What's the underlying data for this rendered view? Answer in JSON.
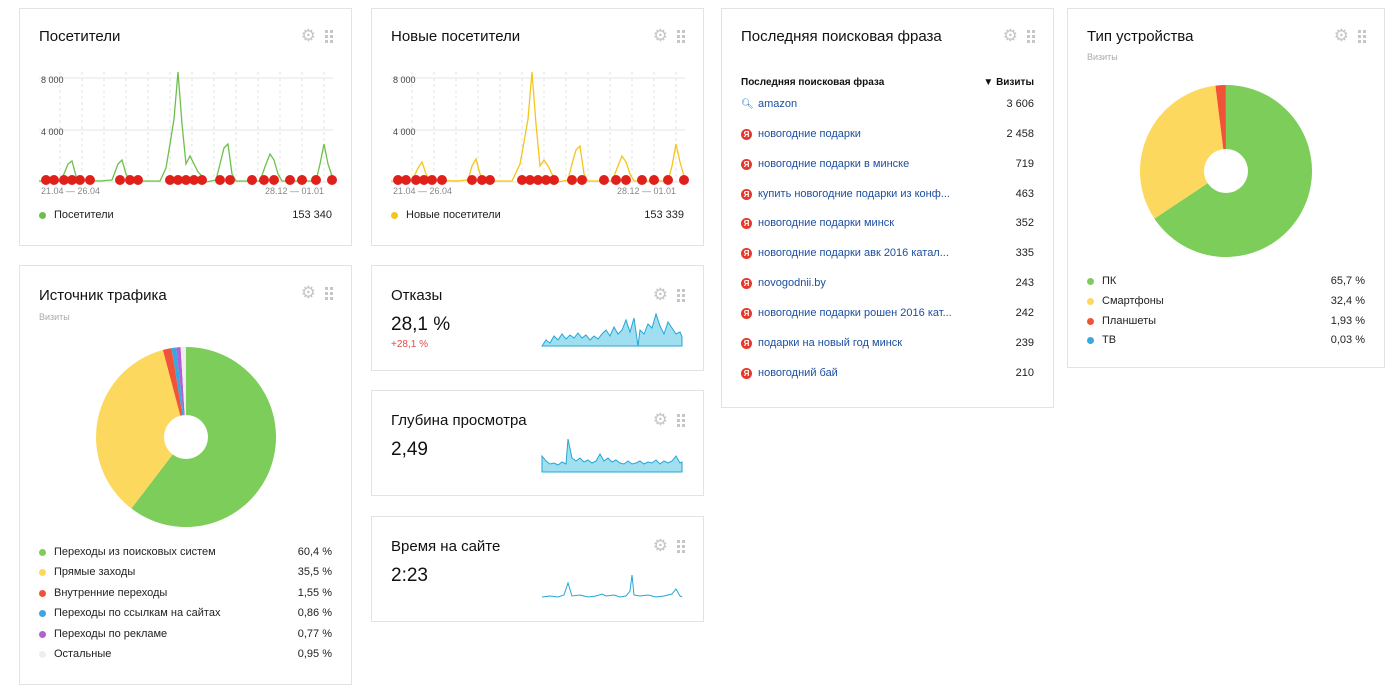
{
  "visitors": {
    "title": "Посетители",
    "y_ticks": [
      "8 000",
      "4 000"
    ],
    "x_labels": [
      "21.04 — 26.04",
      "28.12 — 01.01"
    ],
    "legend": {
      "label": "Посетители",
      "value": "153 340",
      "color": "#6cc04a"
    }
  },
  "new_visitors": {
    "title": "Новые посетители",
    "y_ticks": [
      "8 000",
      "4 000"
    ],
    "x_labels": [
      "21.04 — 26.04",
      "28.12 — 01.01"
    ],
    "legend": {
      "label": "Новые посетители",
      "value": "153 339",
      "color": "#f5c518"
    }
  },
  "search": {
    "title": "Последняя поисковая фраза",
    "col_phrase": "Последняя поисковая фраза",
    "col_visits": "▼ Визиты",
    "rows": [
      {
        "icon": "search-icon",
        "phrase": "amazon",
        "visits": "3 606"
      },
      {
        "icon": "yandex-icon",
        "phrase": "новогодние подарки",
        "visits": "2 458"
      },
      {
        "icon": "yandex-icon",
        "phrase": "новогодние подарки в минске",
        "visits": "719"
      },
      {
        "icon": "yandex-icon",
        "phrase": "купить новогодние подарки из конф...",
        "visits": "463"
      },
      {
        "icon": "yandex-icon",
        "phrase": "новогодние подарки минск",
        "visits": "352"
      },
      {
        "icon": "yandex-icon",
        "phrase": "новогодние подарки авк 2016 катал...",
        "visits": "335"
      },
      {
        "icon": "yandex-icon",
        "phrase": "novogodnii.by",
        "visits": "243"
      },
      {
        "icon": "yandex-icon",
        "phrase": "новогодние подарки рошен 2016 кат...",
        "visits": "242"
      },
      {
        "icon": "yandex-icon",
        "phrase": "подарки на новый год минск",
        "visits": "239"
      },
      {
        "icon": "yandex-icon",
        "phrase": "новогодний бай",
        "visits": "210"
      }
    ]
  },
  "device": {
    "title": "Тип устройства",
    "subtitle": "Визиты",
    "items": [
      {
        "label": "ПК",
        "value": "65,7 %",
        "color": "#7ccd5a"
      },
      {
        "label": "Смартфоны",
        "value": "32,4 %",
        "color": "#fdd85e"
      },
      {
        "label": "Планшеты",
        "value": "1,93 %",
        "color": "#f25237"
      },
      {
        "label": "ТВ",
        "value": "0,03 %",
        "color": "#3aa7e0"
      }
    ]
  },
  "traffic": {
    "title": "Источник трафика",
    "subtitle": "Визиты",
    "items": [
      {
        "label": "Переходы из поисковых систем",
        "value": "60,4 %",
        "color": "#7ccd5a"
      },
      {
        "label": "Прямые заходы",
        "value": "35,5 %",
        "color": "#fdd85e"
      },
      {
        "label": "Внутренние переходы",
        "value": "1,55 %",
        "color": "#f25237"
      },
      {
        "label": "Переходы по ссылкам на сайтах",
        "value": "0,86 %",
        "color": "#3aa7e0"
      },
      {
        "label": "Переходы по рекламе",
        "value": "0,77 %",
        "color": "#b25fd0"
      },
      {
        "label": "Остальные",
        "value": "0,95 %",
        "color": "#eeeeee"
      }
    ]
  },
  "bounce": {
    "title": "Отказы",
    "value": "28,1 %",
    "delta": "+28,1 %"
  },
  "depth": {
    "title": "Глубина просмотра",
    "value": "2,49"
  },
  "time": {
    "title": "Время на сайте",
    "value": "2:23"
  },
  "icons": {
    "gear": "gear-icon",
    "drag": "drag-handle-icon",
    "note": "yandex-marker-icon"
  },
  "chart_data": [
    {
      "type": "pie",
      "title": "Тип устройства",
      "categories": [
        "ПК",
        "Смартфоны",
        "Планшеты",
        "ТВ"
      ],
      "values": [
        65.7,
        32.4,
        1.93,
        0.03
      ]
    },
    {
      "type": "pie",
      "title": "Источник трафика",
      "categories": [
        "Переходы из поисковых систем",
        "Прямые заходы",
        "Внутренние переходы",
        "Переходы по ссылкам на сайтах",
        "Переходы по рекламе",
        "Остальные"
      ],
      "values": [
        60.4,
        35.5,
        1.55,
        0.86,
        0.77,
        0.95
      ]
    }
  ]
}
